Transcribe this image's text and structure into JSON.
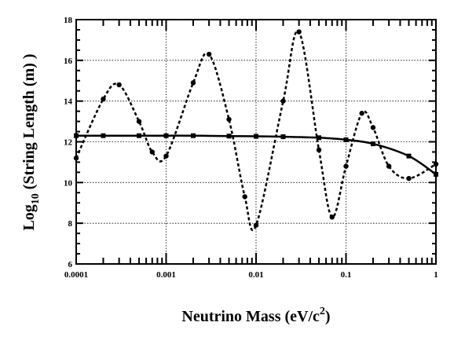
{
  "chart_data": {
    "type": "line",
    "title": "",
    "xlabel": "Neutrino Mass (eV/c",
    "xlabel_superscript": "2",
    "xlabel_suffix": ")",
    "ylabel": "Log",
    "ylabel_subscript": "10",
    "ylabel_suffix": " (String Length (m) )",
    "x_scale": "log",
    "xlim": [
      0.0001,
      1
    ],
    "ylim": [
      6,
      18
    ],
    "grid": true,
    "legend": "none",
    "x_ticks": [
      {
        "value": 0.0001,
        "label": "0.0001"
      },
      {
        "value": 0.001,
        "label": "0.001"
      },
      {
        "value": 0.01,
        "label": "0.01"
      },
      {
        "value": 0.1,
        "label": "0.1"
      },
      {
        "value": 1,
        "label": "1"
      }
    ],
    "y_ticks": [
      {
        "value": 6,
        "label": "6"
      },
      {
        "value": 8,
        "label": "8"
      },
      {
        "value": 10,
        "label": "10"
      },
      {
        "value": 12,
        "label": "12"
      },
      {
        "value": 14,
        "label": "14"
      },
      {
        "value": 16,
        "label": "16"
      },
      {
        "value": 18,
        "label": "18"
      }
    ],
    "series": [
      {
        "style": "solid",
        "color": "#000000",
        "marker": "square",
        "x": [
          0.0001,
          0.0002,
          0.0005,
          0.001,
          0.002,
          0.005,
          0.01,
          0.02,
          0.05,
          0.1,
          0.2,
          0.5,
          1
        ],
        "y": [
          12.3,
          12.3,
          12.3,
          12.3,
          12.3,
          12.28,
          12.27,
          12.25,
          12.2,
          12.1,
          11.9,
          11.3,
          10.4
        ]
      },
      {
        "style": "dashed",
        "color": "#000000",
        "marker": "circle",
        "x": [
          0.0001,
          0.0002,
          0.0003,
          0.0005,
          0.0007,
          0.001,
          0.002,
          0.003,
          0.005,
          0.0075,
          0.01,
          0.02,
          0.03,
          0.05,
          0.07,
          0.1,
          0.15,
          0.2,
          0.3,
          0.5,
          1
        ],
        "y": [
          11.2,
          14.1,
          14.8,
          13.0,
          11.5,
          11.3,
          14.9,
          16.3,
          13.1,
          9.3,
          7.9,
          14.0,
          17.4,
          11.6,
          8.3,
          10.8,
          13.4,
          12.7,
          10.8,
          10.2,
          10.9
        ]
      }
    ]
  }
}
